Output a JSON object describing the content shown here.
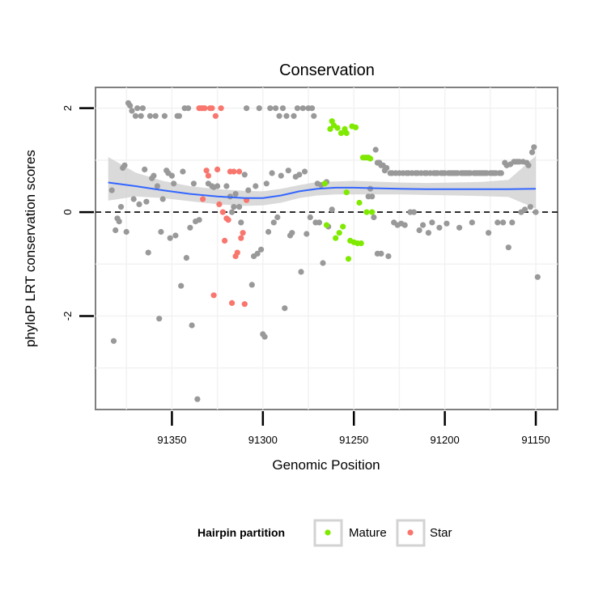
{
  "chart_data": {
    "type": "scatter",
    "title": "Conservation",
    "xlabel": "Genomic Position",
    "ylabel": "phyloP LRT conservation scores",
    "x_reversed": true,
    "xlim": [
      91392,
      91138
    ],
    "ylim": [
      -3.8,
      2.4
    ],
    "x_ticks": [
      91350,
      91300,
      91250,
      91200,
      91150
    ],
    "x_tick_labels": [
      "91350",
      "91300",
      "91250",
      "91200",
      "91150"
    ],
    "y_ticks": [
      2,
      0,
      -2
    ],
    "y_tick_labels": [
      "2",
      "0",
      "-2"
    ],
    "reference_line": {
      "y": 0,
      "style": "dashed"
    },
    "grid": true,
    "colors": {
      "other": "#999999",
      "mature": "#7FEA00",
      "star": "#F8766D",
      "smooth": "#3366FF",
      "band": "#D3D3D3",
      "panel_border": "#7F7F7F",
      "grid": "#F2F2F2"
    },
    "legend": {
      "title": "Hairpin partition",
      "placement": "bottom",
      "entries": [
        {
          "label": "Mature",
          "key": "mature"
        },
        {
          "label": "Star",
          "key": "star"
        }
      ]
    },
    "smooth": {
      "x": [
        91385,
        91370,
        91355,
        91340,
        91325,
        91310,
        91300,
        91290,
        91280,
        91270,
        91260,
        91250,
        91240,
        91225,
        91210,
        91195,
        91180,
        91165,
        91150
      ],
      "y": [
        0.57,
        0.5,
        0.42,
        0.35,
        0.3,
        0.27,
        0.27,
        0.32,
        0.4,
        0.45,
        0.47,
        0.47,
        0.46,
        0.45,
        0.44,
        0.44,
        0.44,
        0.44,
        0.45
      ],
      "lower": [
        0.22,
        0.3,
        0.27,
        0.21,
        0.15,
        0.12,
        0.13,
        0.18,
        0.27,
        0.32,
        0.34,
        0.34,
        0.34,
        0.34,
        0.33,
        0.32,
        0.31,
        0.29,
        0.07
      ],
      "upper": [
        1.06,
        0.76,
        0.6,
        0.5,
        0.44,
        0.41,
        0.4,
        0.45,
        0.52,
        0.58,
        0.59,
        0.6,
        0.59,
        0.57,
        0.56,
        0.57,
        0.58,
        0.62,
        1.08
      ]
    },
    "series": [
      {
        "name": "Mature",
        "points": [
          [
            91266,
            0.55
          ],
          [
            91265,
            -0.25
          ],
          [
            91263,
            1.6
          ],
          [
            91262,
            1.75
          ],
          [
            91261,
            1.67
          ],
          [
            91260,
            -0.5
          ],
          [
            91259,
            1.62
          ],
          [
            91258,
            -0.4
          ],
          [
            91257,
            1.52
          ],
          [
            91256,
            -0.28
          ],
          [
            91255,
            1.6
          ],
          [
            91254,
            1.52
          ],
          [
            91253,
            -0.9
          ],
          [
            91252,
            -0.55
          ],
          [
            91251,
            1.65
          ],
          [
            91250,
            -0.58
          ],
          [
            91249,
            1.63
          ],
          [
            91248,
            -0.6
          ],
          [
            91247,
            0.18
          ],
          [
            91246,
            -0.6
          ],
          [
            91245,
            1.05
          ],
          [
            91244,
            1.05
          ],
          [
            91243,
            0.0
          ],
          [
            91242,
            1.05
          ],
          [
            91241,
            1.03
          ],
          [
            91240,
            0.0
          ],
          [
            91254,
            0.38
          ]
        ]
      },
      {
        "name": "Star",
        "points": [
          [
            91335,
            2.0
          ],
          [
            91334,
            2.0
          ],
          [
            91333,
            2.0
          ],
          [
            91332,
            2.0
          ],
          [
            91331,
            0.8
          ],
          [
            91330,
            0.7
          ],
          [
            91329,
            2.0
          ],
          [
            91328,
            2.0
          ],
          [
            91326,
            1.85
          ],
          [
            91325,
            0.82
          ],
          [
            91324,
            0.15
          ],
          [
            91323,
            2.0
          ],
          [
            91322,
            0.0
          ],
          [
            91321,
            -0.55
          ],
          [
            91320,
            -0.12
          ],
          [
            91319,
            -0.15
          ],
          [
            91318,
            0.78
          ],
          [
            91317,
            -1.75
          ],
          [
            91316,
            0.78
          ],
          [
            91315,
            -0.85
          ],
          [
            91314,
            -0.78
          ],
          [
            91313,
            0.78
          ],
          [
            91312,
            -0.5
          ],
          [
            91311,
            -0.4
          ],
          [
            91310,
            -1.77
          ],
          [
            91309,
            0.23
          ],
          [
            91327,
            -1.6
          ],
          [
            91333,
            0.25
          ]
        ]
      },
      {
        "name": "Other",
        "points": [
          [
            91383,
            0.42
          ],
          [
            91382,
            -2.48
          ],
          [
            91381,
            -0.35
          ],
          [
            91380,
            -0.12
          ],
          [
            91379,
            -0.18
          ],
          [
            91378,
            0.1
          ],
          [
            91377,
            0.85
          ],
          [
            91376,
            0.9
          ],
          [
            91375,
            -0.38
          ],
          [
            91374,
            2.1
          ],
          [
            91373,
            2.05
          ],
          [
            91372,
            1.95
          ],
          [
            91371,
            0.25
          ],
          [
            91370,
            1.85
          ],
          [
            91369,
            2.0
          ],
          [
            91368,
            0.15
          ],
          [
            91367,
            1.85
          ],
          [
            91366,
            2.0
          ],
          [
            91365,
            0.82
          ],
          [
            91364,
            0.2
          ],
          [
            91363,
            -0.78
          ],
          [
            91362,
            1.85
          ],
          [
            91361,
            0.65
          ],
          [
            91360,
            0.7
          ],
          [
            91359,
            1.85
          ],
          [
            91358,
            0.5
          ],
          [
            91357,
            -2.05
          ],
          [
            91356,
            -0.38
          ],
          [
            91355,
            0.25
          ],
          [
            91354,
            1.85
          ],
          [
            91353,
            0.8
          ],
          [
            91352,
            0.75
          ],
          [
            91351,
            -0.5
          ],
          [
            91350,
            0.7
          ],
          [
            91349,
            0.55
          ],
          [
            91348,
            -0.45
          ],
          [
            91347,
            1.85
          ],
          [
            91346,
            1.85
          ],
          [
            91345,
            -1.42
          ],
          [
            91344,
            0.78
          ],
          [
            91343,
            2.0
          ],
          [
            91342,
            -0.88
          ],
          [
            91341,
            2.0
          ],
          [
            91340,
            -0.3
          ],
          [
            91339,
            -2.18
          ],
          [
            91338,
            0.55
          ],
          [
            91337,
            -0.18
          ],
          [
            91336,
            -3.6
          ],
          [
            91335,
            -0.15
          ],
          [
            91330,
            0.55
          ],
          [
            91328,
            0.5
          ],
          [
            91327,
            0.48
          ],
          [
            91325,
            0.5
          ],
          [
            91320,
            0.5
          ],
          [
            91318,
            0.3
          ],
          [
            91317,
            0.0
          ],
          [
            91316,
            0.1
          ],
          [
            91315,
            0.35
          ],
          [
            91313,
            0.1
          ],
          [
            91312,
            -0.2
          ],
          [
            91310,
            0.72
          ],
          [
            91309,
            2.0
          ],
          [
            91308,
            0.42
          ],
          [
            91306,
            -1.4
          ],
          [
            91305,
            -0.85
          ],
          [
            91304,
            0.5
          ],
          [
            91303,
            -0.8
          ],
          [
            91302,
            2.0
          ],
          [
            91301,
            -0.72
          ],
          [
            91300,
            -2.35
          ],
          [
            91299,
            -2.4
          ],
          [
            91298,
            0.55
          ],
          [
            91297,
            -0.38
          ],
          [
            91296,
            2.0
          ],
          [
            91295,
            0.75
          ],
          [
            91294,
            -0.2
          ],
          [
            91293,
            2.0
          ],
          [
            91292,
            -0.1
          ],
          [
            91291,
            1.85
          ],
          [
            91290,
            0.7
          ],
          [
            91289,
            2.0
          ],
          [
            91288,
            -1.85
          ],
          [
            91287,
            1.85
          ],
          [
            91286,
            0.8
          ],
          [
            91285,
            -0.45
          ],
          [
            91284,
            -0.4
          ],
          [
            91283,
            1.85
          ],
          [
            91282,
            0.68
          ],
          [
            91281,
            2.0
          ],
          [
            91280,
            0.72
          ],
          [
            91279,
            -1.15
          ],
          [
            91278,
            2.0
          ],
          [
            91277,
            0.78
          ],
          [
            91276,
            -0.42
          ],
          [
            91275,
            2.0
          ],
          [
            91274,
            -0.1
          ],
          [
            91273,
            2.0
          ],
          [
            91272,
            1.85
          ],
          [
            91271,
            -0.2
          ],
          [
            91270,
            0.55
          ],
          [
            91269,
            -0.2
          ],
          [
            91268,
            0.52
          ],
          [
            91267,
            -0.98
          ],
          [
            91265,
            0.58
          ],
          [
            91264,
            -0.28
          ],
          [
            91262,
            0.05
          ],
          [
            91237,
            0.95
          ],
          [
            91236,
            0.95
          ],
          [
            91235,
            -0.8
          ],
          [
            91234,
            0.9
          ],
          [
            91233,
            0.8
          ],
          [
            91232,
            0.85
          ],
          [
            91231,
            -0.85
          ],
          [
            91230,
            0.75
          ],
          [
            91229,
            0.75
          ],
          [
            91228,
            -0.2
          ],
          [
            91227,
            0.75
          ],
          [
            91226,
            -0.25
          ],
          [
            91225,
            0.75
          ],
          [
            91224,
            -0.22
          ],
          [
            91223,
            0.75
          ],
          [
            91222,
            -0.25
          ],
          [
            91221,
            0.75
          ],
          [
            91220,
            0.75
          ],
          [
            91219,
            0.0
          ],
          [
            91218,
            0.75
          ],
          [
            91217,
            0.0
          ],
          [
            91216,
            0.75
          ],
          [
            91215,
            0.75
          ],
          [
            91214,
            -0.35
          ],
          [
            91213,
            0.75
          ],
          [
            91212,
            -0.25
          ],
          [
            91211,
            0.75
          ],
          [
            91210,
            0.75
          ],
          [
            91209,
            -0.4
          ],
          [
            91208,
            0.75
          ],
          [
            91207,
            -0.2
          ],
          [
            91206,
            0.75
          ],
          [
            91205,
            0.75
          ],
          [
            91204,
            0.75
          ],
          [
            91203,
            -0.3
          ],
          [
            91202,
            0.75
          ],
          [
            91201,
            0.75
          ],
          [
            91200,
            0.75
          ],
          [
            91199,
            -0.22
          ],
          [
            91198,
            0.75
          ],
          [
            91197,
            0.75
          ],
          [
            91196,
            0.75
          ],
          [
            91195,
            0.75
          ],
          [
            91194,
            0.75
          ],
          [
            91193,
            0.75
          ],
          [
            91192,
            -0.3
          ],
          [
            91191,
            0.75
          ],
          [
            91190,
            0.75
          ],
          [
            91189,
            0.75
          ],
          [
            91188,
            0.75
          ],
          [
            91187,
            0.75
          ],
          [
            91186,
            0.75
          ],
          [
            91185,
            -0.2
          ],
          [
            91184,
            0.75
          ],
          [
            91183,
            0.75
          ],
          [
            91182,
            0.75
          ],
          [
            91181,
            0.75
          ],
          [
            91180,
            0.75
          ],
          [
            91179,
            0.75
          ],
          [
            91178,
            0.75
          ],
          [
            91177,
            0.75
          ],
          [
            91176,
            -0.4
          ],
          [
            91175,
            0.75
          ],
          [
            91174,
            0.75
          ],
          [
            91173,
            0.75
          ],
          [
            91172,
            0.75
          ],
          [
            91171,
            -0.2
          ],
          [
            91170,
            0.75
          ],
          [
            91169,
            0.75
          ],
          [
            91168,
            -0.2
          ],
          [
            91167,
            0.95
          ],
          [
            91166,
            0.9
          ],
          [
            91165,
            -0.68
          ],
          [
            91164,
            0.92
          ],
          [
            91163,
            -0.2
          ],
          [
            91162,
            0.97
          ],
          [
            91161,
            0.97
          ],
          [
            91160,
            0.97
          ],
          [
            91159,
            0.97
          ],
          [
            91158,
            0.0
          ],
          [
            91157,
            0.97
          ],
          [
            91156,
            0.05
          ],
          [
            91155,
            0.95
          ],
          [
            91154,
            0.9
          ],
          [
            91153,
            0.1
          ],
          [
            91152,
            1.15
          ],
          [
            91151,
            1.25
          ],
          [
            91150,
            0.0
          ],
          [
            91149,
            -1.25
          ],
          [
            91243,
            1.05
          ],
          [
            91242,
            0.3
          ],
          [
            91241,
            0.45
          ],
          [
            91240,
            0.3
          ],
          [
            91239,
            -0.1
          ],
          [
            91238,
            1.2
          ],
          [
            91237,
            -0.8
          ],
          [
            91236,
            0.95
          ],
          [
            91235,
            0.9
          ]
        ]
      }
    ]
  }
}
